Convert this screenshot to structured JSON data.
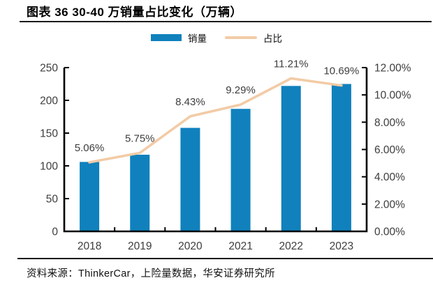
{
  "header": {
    "title": "图表 36 30-40 万销量占比变化（万辆）"
  },
  "legend": {
    "position": "top-center",
    "items": [
      {
        "label": "销量",
        "type": "bar",
        "color": "#1081bd"
      },
      {
        "label": "占比",
        "type": "line",
        "color": "#f2cba6"
      }
    ]
  },
  "chart_data": {
    "type": "bar+line combo",
    "title": "30-40 万销量占比变化（万辆）",
    "categories": [
      "2018",
      "2019",
      "2020",
      "2021",
      "2022",
      "2023"
    ],
    "series": [
      {
        "name": "销量",
        "type": "bar",
        "axis": "left",
        "color": "#1081bd",
        "values": [
          106,
          117,
          158,
          187,
          222,
          225
        ]
      },
      {
        "name": "占比",
        "type": "line",
        "axis": "right",
        "color": "#f2cba6",
        "values": [
          5.06,
          5.75,
          8.43,
          9.29,
          11.21,
          10.69
        ],
        "point_labels": [
          "5.06%",
          "5.75%",
          "8.43%",
          "9.29%",
          "11.21%",
          "10.69%"
        ]
      }
    ],
    "left_axis": {
      "min": 0,
      "max": 250,
      "step": 50,
      "ticks": [
        "0",
        "50",
        "100",
        "150",
        "200",
        "250"
      ]
    },
    "right_axis": {
      "min": 0,
      "max": 12,
      "step": 2,
      "ticks": [
        "0.00%",
        "2.00%",
        "4.00%",
        "6.00%",
        "8.00%",
        "10.00%",
        "12.00%"
      ]
    },
    "grid": "off",
    "legend_position": "top-center",
    "axis_color": "#000000",
    "tick_label_color": "#3d3d3d"
  },
  "footer": {
    "source": "资料来源：ThinkerCar，上险量数据，华安证券研究所"
  }
}
